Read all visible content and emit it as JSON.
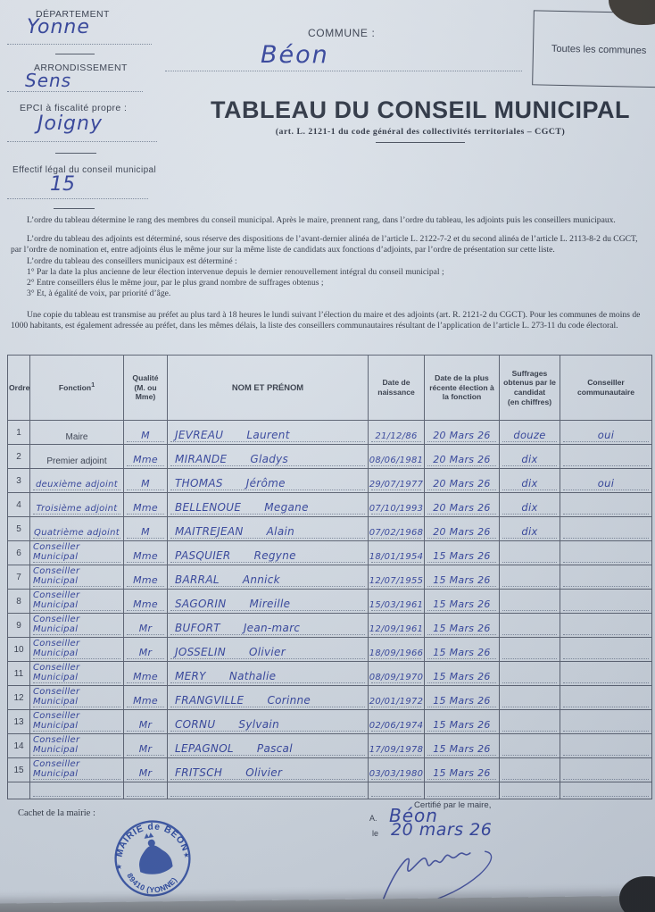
{
  "header": {
    "departement_label": "DÉPARTEMENT",
    "departement_value": "Yonne",
    "arrondissement_label": "ARRONDISSEMENT",
    "arrondissement_value": "Sens",
    "epci_label": "EPCI à fiscalité propre :",
    "epci_value": "Joigny",
    "effectif_label": "Effectif légal du conseil municipal",
    "effectif_value": "15",
    "commune_label": "COMMUNE :",
    "commune_value": "Béon",
    "communes_box_label": "Toutes les communes",
    "title": "TABLEAU DU CONSEIL MUNICIPAL",
    "subtitle": "(art. L. 2121-1 du code général des  collectivités territoriales – CGCT)"
  },
  "intro": {
    "p1": "L’ordre du tableau détermine le rang des membres du conseil municipal. Après le maire, prennent rang, dans l’ordre du tableau, les adjoints puis les conseillers municipaux.",
    "p2": "L’ordre du tableau des adjoints est déterminé, sous réserve des dispositions de l’avant-dernier alinéa de l’article L. 2122-7-2 et du second alinéa de l’article L. 2113-8-2 du CGCT, par l’ordre de nomination et, entre adjoints élus le même jour sur la même liste de candidats aux fonctions d’adjoints, par l’ordre de présentation sur cette liste.",
    "p3": "L’ordre du tableau des conseillers municipaux est déterminé :",
    "item1": "1° Par la date la plus ancienne de leur élection intervenue depuis le dernier renouvellement intégral du conseil municipal ;",
    "item2": "2° Entre conseillers élus le même jour, par le plus grand nombre de suffrages obtenus ;",
    "item3": "3° Et, à égalité de voix, par priorité d’âge.",
    "p4": "Une copie du tableau est transmise au préfet au plus tard à 18 heures le lundi suivant l’élection du maire et des adjoints (art. R. 2121-2 du CGCT). Pour les communes de moins de 1000 habitants, est également adressée au préfet, dans les mêmes délais, la liste des conseillers communautaires résultant de l’application de l’article L. 273-11 du code électoral."
  },
  "table": {
    "headers": {
      "ordre": "Ordre",
      "fonction": "Fonction",
      "fonction_sup": "1",
      "qualite": "Qualité\n(M. ou\nMme)",
      "nom": "NOM ET PRÉNOM",
      "naissance": "Date de\nnaissance",
      "election": "Date de la plus\nrécente élection à\nla fonction",
      "suffrages": "Suffrages\nobtenus par le\ncandidat\n(en chiffres)",
      "communautaire": "Conseiller\ncommunautaire"
    },
    "rows": [
      {
        "ordre": "1",
        "fonction": "Maire",
        "hand": false,
        "qualite": "M",
        "nom": "JEVREAU",
        "prenom": "Laurent",
        "naissance": "21/12/86",
        "election": "20 Mars 26",
        "suffrages": "douze",
        "communautaire": "oui"
      },
      {
        "ordre": "2",
        "fonction": "Premier adjoint",
        "hand": false,
        "qualite": "Mme",
        "nom": "MIRANDE",
        "prenom": "Gladys",
        "naissance": "08/06/1981",
        "election": "20 Mars 26",
        "suffrages": "dix",
        "communautaire": ""
      },
      {
        "ordre": "3",
        "fonction": "deuxième adjoint",
        "hand": true,
        "qualite": "M",
        "nom": "THOMAS",
        "prenom": "Jérôme",
        "naissance": "29/07/1977",
        "election": "20 Mars 26",
        "suffrages": "dix",
        "communautaire": "oui"
      },
      {
        "ordre": "4",
        "fonction": "Troisième adjoint",
        "hand": true,
        "qualite": "Mme",
        "nom": "BELLENOUE",
        "prenom": "Megane",
        "naissance": "07/10/1993",
        "election": "20 Mars 26",
        "suffrages": "dix",
        "communautaire": ""
      },
      {
        "ordre": "5",
        "fonction": "Quatrième adjoint",
        "hand": true,
        "qualite": "M",
        "nom": "MAITREJEAN",
        "prenom": "Alain",
        "naissance": "07/02/1968",
        "election": "20 Mars 26",
        "suffrages": "dix",
        "communautaire": ""
      },
      {
        "ordre": "6",
        "fonction": "Conseiller Municipal",
        "hand": true,
        "qualite": "Mme",
        "nom": "PASQUIER",
        "prenom": "Regyne",
        "naissance": "18/01/1954",
        "election": "15 Mars 26",
        "suffrages": "",
        "communautaire": ""
      },
      {
        "ordre": "7",
        "fonction": "Conseiller Municipal",
        "hand": true,
        "qualite": "Mme",
        "nom": "BARRAL",
        "prenom": "Annick",
        "naissance": "12/07/1955",
        "election": "15 Mars 26",
        "suffrages": "",
        "communautaire": ""
      },
      {
        "ordre": "8",
        "fonction": "Conseiller Municipal",
        "hand": true,
        "qualite": "Mme",
        "nom": "SAGORIN",
        "prenom": "Mireille",
        "naissance": "15/03/1961",
        "election": "15 Mars 26",
        "suffrages": "",
        "communautaire": ""
      },
      {
        "ordre": "9",
        "fonction": "Conseiller Municipal",
        "hand": true,
        "qualite": "Mr",
        "nom": "BUFORT",
        "prenom": "Jean-marc",
        "naissance": "12/09/1961",
        "election": "15 Mars 26",
        "suffrages": "",
        "communautaire": ""
      },
      {
        "ordre": "10",
        "fonction": "Conseiller Municipal",
        "hand": true,
        "qualite": "Mr",
        "nom": "JOSSELIN",
        "prenom": "Olivier",
        "naissance": "18/09/1966",
        "election": "15 Mars 26",
        "suffrages": "",
        "communautaire": ""
      },
      {
        "ordre": "11",
        "fonction": "Conseiller Municipal",
        "hand": true,
        "qualite": "Mme",
        "nom": "MERY",
        "prenom": "Nathalie",
        "naissance": "08/09/1970",
        "election": "15 Mars 26",
        "suffrages": "",
        "communautaire": ""
      },
      {
        "ordre": "12",
        "fonction": "Conseiller Municipal",
        "hand": true,
        "qualite": "Mme",
        "nom": "FRANGVILLE",
        "prenom": "Corinne",
        "naissance": "20/01/1972",
        "election": "15 Mars 26",
        "suffrages": "",
        "communautaire": ""
      },
      {
        "ordre": "13",
        "fonction": "Conseiller Municipal",
        "hand": true,
        "qualite": "Mr",
        "nom": "CORNU",
        "prenom": "Sylvain",
        "naissance": "02/06/1974",
        "election": "15 Mars 26",
        "suffrages": "",
        "communautaire": ""
      },
      {
        "ordre": "14",
        "fonction": "Conseiller Municipal",
        "hand": true,
        "qualite": "Mr",
        "nom": "LEPAGNOL",
        "prenom": "Pascal",
        "naissance": "17/09/1978",
        "election": "15 Mars 26",
        "suffrages": "",
        "communautaire": ""
      },
      {
        "ordre": "15",
        "fonction": "Conseiller Municipal",
        "hand": true,
        "qualite": "Mr",
        "nom": "FRITSCH",
        "prenom": "Olivier",
        "naissance": "03/03/1980",
        "election": "15 Mars 26",
        "suffrages": "",
        "communautaire": ""
      },
      {
        "ordre": "",
        "fonction": "",
        "hand": true,
        "qualite": "",
        "nom": "",
        "prenom": "",
        "naissance": "",
        "election": "",
        "suffrages": "",
        "communautaire": ""
      }
    ]
  },
  "footer": {
    "cachet_label": "Cachet de la mairie :",
    "stamp_top": "MAIRIE de BÉON",
    "stamp_bottom": "89410 (YONNE)",
    "stamp_star": "★",
    "certifie_label": "Certifié par le maire,",
    "a_label": "A.",
    "a_value": "Béon",
    "le_label": "le",
    "le_value": "20 mars 26"
  },
  "colors": {
    "ink": "#35459c",
    "stamp_blue": "#2d4a9e",
    "paper": "#d7dee6",
    "print_text": "#343b48"
  }
}
